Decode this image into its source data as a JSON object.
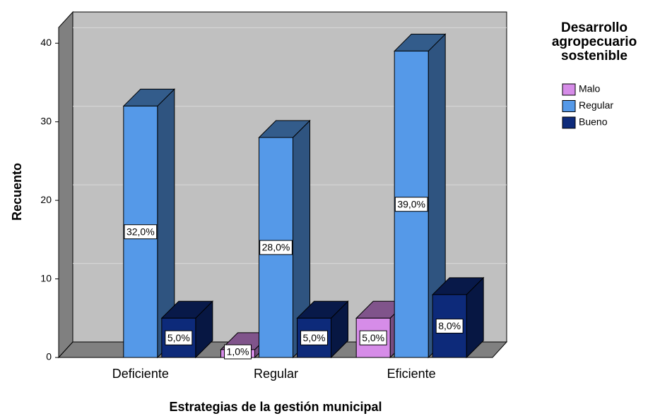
{
  "chart_data": {
    "type": "bar3d",
    "xlabel": "Estrategias de la gestión municipal",
    "ylabel": "Recuento",
    "legend_title": "Desarrollo agropecuario sostenible",
    "categories": [
      "Deficiente",
      "Regular",
      "Eficiente"
    ],
    "series": [
      {
        "name": "Malo",
        "color": "#d68ce8",
        "values": [
          null,
          1,
          5
        ],
        "value_labels": [
          null,
          "1,0%",
          "5,0%"
        ]
      },
      {
        "name": "Regular",
        "color": "#5599e8",
        "values": [
          32,
          28,
          39
        ],
        "value_labels": [
          "32,0%",
          "28,0%",
          "39,0%"
        ]
      },
      {
        "name": "Bueno",
        "color": "#0d2a7a",
        "values": [
          5,
          5,
          8
        ],
        "value_labels": [
          "5,0%",
          "5,0%",
          "8,0%"
        ]
      }
    ],
    "ylim": [
      0,
      42
    ],
    "yticks": [
      0,
      10,
      20,
      30,
      40
    ],
    "grid": true,
    "legend": "right"
  }
}
